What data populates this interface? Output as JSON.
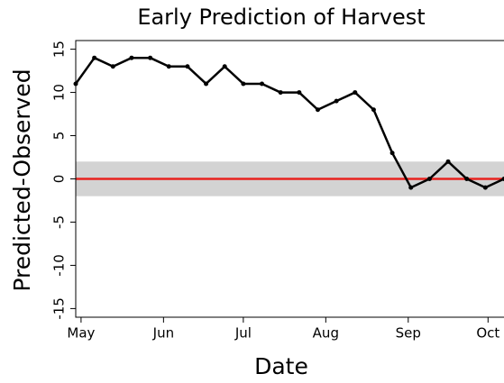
{
  "chart_data": {
    "type": "line",
    "title": "Early Prediction of Harvest",
    "x_label": "Date",
    "y_label": "Predicted-Observed",
    "x": [
      119,
      126,
      133,
      140,
      147,
      154,
      161,
      168,
      175,
      182,
      189,
      196,
      203,
      210,
      217,
      224,
      231,
      238,
      245,
      252,
      259,
      266,
      273,
      280
    ],
    "series": [
      {
        "name": "Predicted-Observed",
        "color": "#000000",
        "values": [
          11,
          14,
          13,
          14,
          14,
          13,
          13,
          11,
          13,
          11,
          11,
          10,
          10,
          8,
          9,
          10,
          8,
          3,
          -1,
          0,
          2,
          0,
          -1,
          0
        ]
      }
    ],
    "xlim": [
      119,
      280
    ],
    "xticks": [
      {
        "value": 121,
        "label": "May"
      },
      {
        "value": 152,
        "label": "Jun"
      },
      {
        "value": 182,
        "label": "Jul"
      },
      {
        "value": 213,
        "label": "Aug"
      },
      {
        "value": 244,
        "label": "Sep"
      },
      {
        "value": 274,
        "label": "Oct"
      }
    ],
    "ylim": [
      -16,
      16
    ],
    "yticks": [
      -15,
      -10,
      -5,
      0,
      5,
      10,
      15
    ],
    "band": [
      -2,
      2
    ],
    "band_color": "#d3d3d3",
    "reference_line": 0,
    "reference_color": "#e8231f"
  }
}
